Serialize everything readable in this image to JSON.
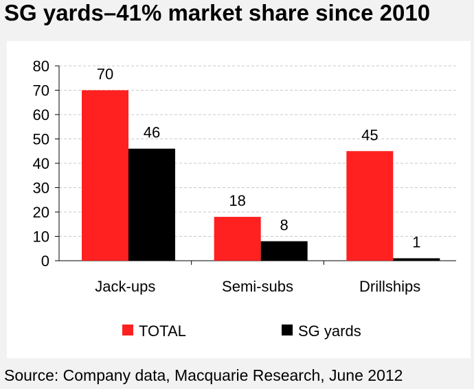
{
  "title": "SG yards–41% market share since 2010",
  "source": "Source: Company data, Macquarie Research, June 2012",
  "colors": {
    "total": "#ff2020",
    "sg": "#000000",
    "grid": "#c8c8c8"
  },
  "chart_data": {
    "type": "bar",
    "categories": [
      "Jack-ups",
      "Semi-subs",
      "Drillships"
    ],
    "series": [
      {
        "name": "TOTAL",
        "values": [
          70,
          18,
          45
        ]
      },
      {
        "name": "SG yards",
        "values": [
          46,
          8,
          1
        ]
      }
    ],
    "ylim": [
      0,
      80
    ],
    "yticks": [
      0,
      10,
      20,
      30,
      40,
      50,
      60,
      70,
      80
    ],
    "grid": true,
    "legend": "bottom"
  }
}
